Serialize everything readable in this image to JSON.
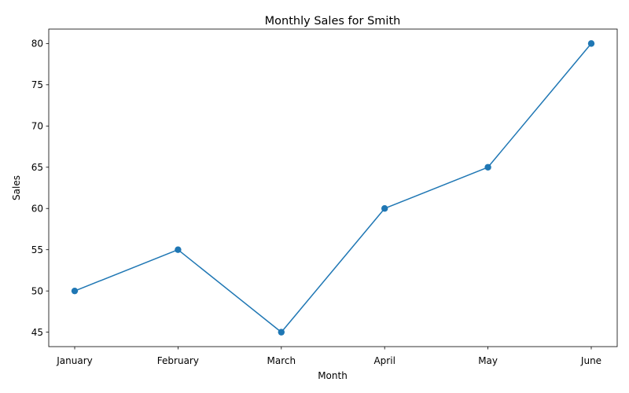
{
  "chart_data": {
    "type": "line",
    "title": "Monthly Sales for Smith",
    "xlabel": "Month",
    "ylabel": "Sales",
    "categories": [
      "January",
      "February",
      "March",
      "April",
      "May",
      "June"
    ],
    "values": [
      50,
      55,
      45,
      60,
      65,
      80
    ],
    "ylim": [
      43.25,
      81.75
    ],
    "yticks": [
      45,
      50,
      55,
      60,
      65,
      70,
      75,
      80
    ],
    "grid": false,
    "marker": "circle",
    "colors": {
      "series": "#1f77b4",
      "axes": "#000000"
    }
  }
}
